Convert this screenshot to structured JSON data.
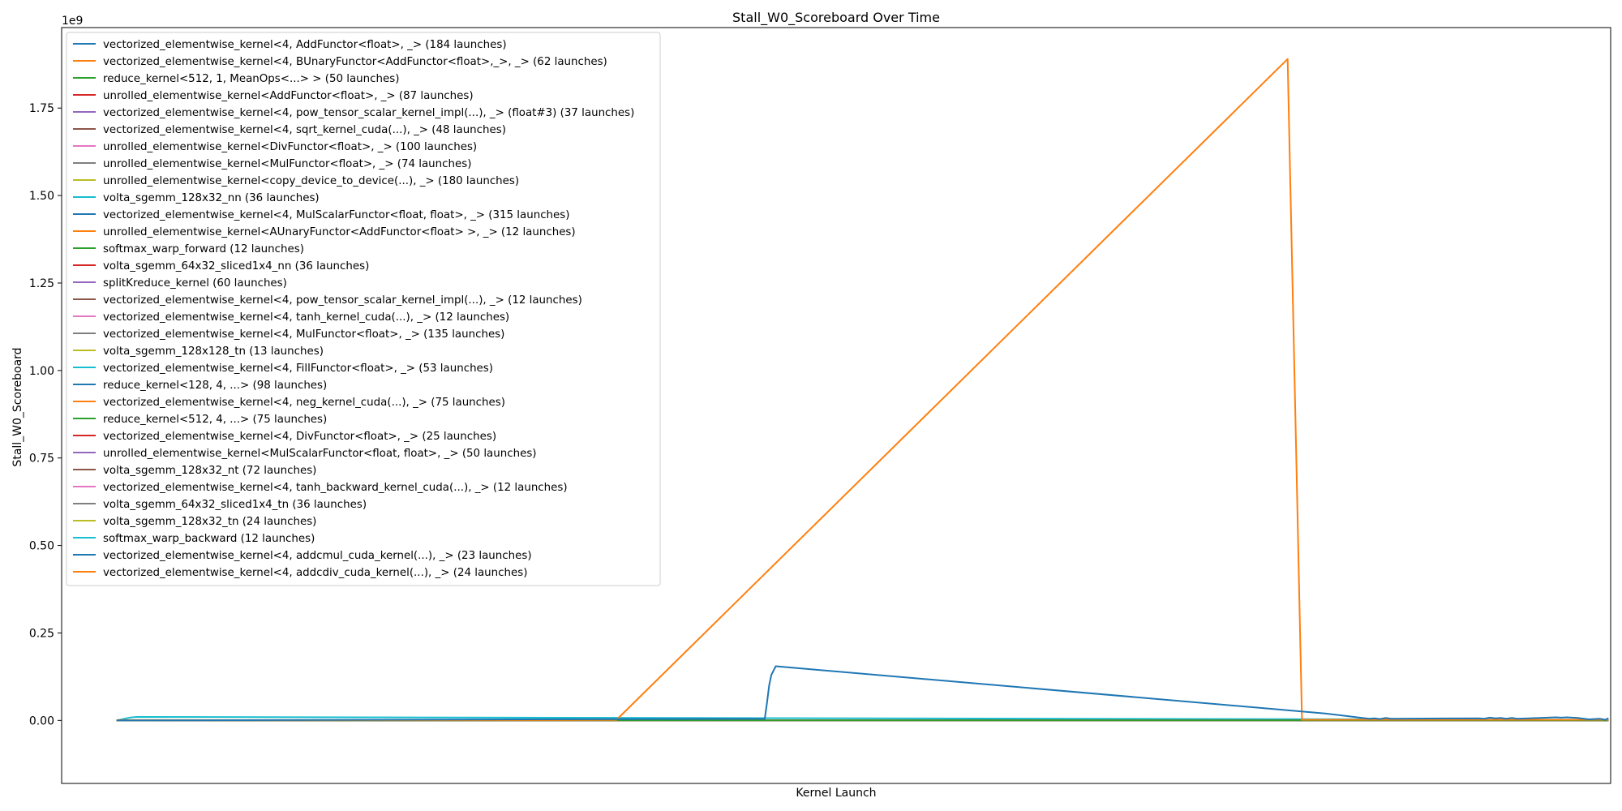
{
  "chart_data": {
    "type": "line",
    "title": "Stall_W0_Scoreboard Over Time",
    "xlabel": "Kernel Launch",
    "ylabel": "Stall_W0_Scoreboard",
    "y_offset_label": "1e9",
    "ylim": [
      -0.18,
      1.98
    ],
    "xlim": [
      -50,
      1360
    ],
    "yticks": [
      0.0,
      0.25,
      0.5,
      0.75,
      1.0,
      1.25,
      1.5,
      1.75
    ],
    "ytick_labels": [
      "0.00",
      "0.25",
      "0.50",
      "0.75",
      "1.00",
      "1.25",
      "1.50",
      "1.75"
    ],
    "xticks_shown": false,
    "grid": false,
    "legend_position": "upper left",
    "colors": [
      "#1f77b4",
      "#ff7f0e",
      "#2ca02c",
      "#d62728",
      "#9467bd",
      "#8c564b",
      "#e377c2",
      "#7f7f7f",
      "#bcbd22",
      "#17becf"
    ],
    "series": [
      {
        "name": "vectorized_elementwise_kernel<4, AddFunctor<float>, _> (184 launches)",
        "x": [
          0,
          5,
          10,
          15,
          19,
          20,
          590,
          592,
          594,
          596,
          600,
          1100,
          1140,
          1145,
          1150,
          1155,
          1160,
          1240,
          1245,
          1250,
          1255,
          1260,
          1265,
          1270,
          1275,
          1310,
          1315,
          1320,
          1325,
          1330,
          1340,
          1350,
          1355,
          1358
        ],
        "y": [
          0.0,
          0.0,
          0.0,
          0.0,
          0.0,
          0.0,
          0.005,
          0.05,
          0.1,
          0.13,
          0.155,
          0.02,
          0.005,
          0.006,
          0.004,
          0.007,
          0.005,
          0.006,
          0.005,
          0.008,
          0.006,
          0.007,
          0.005,
          0.007,
          0.005,
          0.009,
          0.008,
          0.009,
          0.008,
          0.007,
          0.003,
          0.005,
          0.002,
          0.006
        ]
      },
      {
        "name": "vectorized_elementwise_kernel<4, BUnaryFunctor<AddFunctor<float>,_>, _> (62 launches)",
        "x": [
          0,
          10,
          20,
          100,
          200,
          300,
          400,
          455,
          1066,
          1079,
          1100,
          1200,
          1300,
          1358
        ],
        "y": [
          0.001,
          0.001,
          0.001,
          0.001,
          0.001,
          0.001,
          0.001,
          0.0015,
          1.89,
          0.002,
          0.002,
          0.002,
          0.002,
          0.002
        ]
      },
      {
        "name": "reduce_kernel<512, 1, MeanOps<...> > (50 launches)",
        "x": [
          0,
          1358
        ],
        "y": [
          0.0,
          0.0
        ]
      },
      {
        "name": "unrolled_elementwise_kernel<AddFunctor<float>, _> (87 launches)",
        "x": [
          0,
          1358
        ],
        "y": [
          0.0,
          0.0
        ]
      },
      {
        "name": "vectorized_elementwise_kernel<4, pow_tensor_scalar_kernel_impl(...), _> (float#3) (37 launches)",
        "x": [
          0,
          1358
        ],
        "y": [
          0.0,
          0.0
        ]
      },
      {
        "name": "vectorized_elementwise_kernel<4, sqrt_kernel_cuda(...), _> (48 launches)",
        "x": [
          0,
          1358
        ],
        "y": [
          0.0,
          0.0
        ]
      },
      {
        "name": "unrolled_elementwise_kernel<DivFunctor<float>, _> (100 launches)",
        "x": [
          0,
          1358
        ],
        "y": [
          0.0,
          0.0
        ]
      },
      {
        "name": "unrolled_elementwise_kernel<MulFunctor<float>, _> (74 launches)",
        "x": [
          0,
          1358
        ],
        "y": [
          0.0,
          0.0
        ]
      },
      {
        "name": "unrolled_elementwise_kernel<copy_device_to_device(...), _> (180 launches)",
        "x": [
          0,
          1358
        ],
        "y": [
          0.0,
          0.0
        ]
      },
      {
        "name": "volta_sgemm_128x32_nn (36 launches)",
        "x": [
          0,
          12,
          18,
          1358
        ],
        "y": [
          0.0,
          0.008,
          0.01,
          0.002
        ]
      },
      {
        "name": "vectorized_elementwise_kernel<4, MulScalarFunctor<float, float>, _> (315 launches)",
        "x": [
          0,
          1358
        ],
        "y": [
          0.0,
          0.0
        ]
      },
      {
        "name": "unrolled_elementwise_kernel<AUnaryFunctor<AddFunctor<float> >, _> (12 launches)",
        "x": [
          0,
          1358
        ],
        "y": [
          0.0,
          0.0
        ]
      },
      {
        "name": "softmax_warp_forward (12 launches)",
        "x": [
          0,
          1358
        ],
        "y": [
          0.0,
          0.0
        ]
      },
      {
        "name": "volta_sgemm_64x32_sliced1x4_nn (36 launches)",
        "x": [
          0,
          1358
        ],
        "y": [
          0.0,
          0.0
        ]
      },
      {
        "name": "splitKreduce_kernel (60 launches)",
        "x": [
          0,
          1358
        ],
        "y": [
          0.0,
          0.0
        ]
      },
      {
        "name": "vectorized_elementwise_kernel<4, pow_tensor_scalar_kernel_impl(...), _> (12 launches)",
        "x": [
          0,
          1358
        ],
        "y": [
          0.0,
          0.0
        ]
      },
      {
        "name": "vectorized_elementwise_kernel<4, tanh_kernel_cuda(...), _> (12 launches)",
        "x": [
          0,
          1358
        ],
        "y": [
          0.0,
          0.0
        ]
      },
      {
        "name": "vectorized_elementwise_kernel<4, MulFunctor<float>, _> (135 launches)",
        "x": [
          0,
          1358
        ],
        "y": [
          0.0,
          0.0
        ]
      },
      {
        "name": "volta_sgemm_128x128_tn (13 launches)",
        "x": [
          0,
          1358
        ],
        "y": [
          0.0,
          0.0
        ]
      },
      {
        "name": "vectorized_elementwise_kernel<4, FillFunctor<float>, _> (53 launches)",
        "x": [
          0,
          1358
        ],
        "y": [
          0.0,
          0.0
        ]
      },
      {
        "name": "reduce_kernel<128, 4, ...> (98 launches)",
        "x": [
          0,
          1358
        ],
        "y": [
          0.0,
          0.0
        ]
      },
      {
        "name": "vectorized_elementwise_kernel<4, neg_kernel_cuda(...), _> (75 launches)",
        "x": [
          0,
          1358
        ],
        "y": [
          0.0,
          0.0
        ]
      },
      {
        "name": "reduce_kernel<512, 4, ...> (75 launches)",
        "x": [
          0,
          1358
        ],
        "y": [
          0.0,
          0.0
        ]
      },
      {
        "name": "vectorized_elementwise_kernel<4, DivFunctor<float>, _> (25 launches)",
        "x": [
          0,
          1358
        ],
        "y": [
          0.0,
          0.0
        ]
      },
      {
        "name": "unrolled_elementwise_kernel<MulScalarFunctor<float, float>, _> (50 launches)",
        "x": [
          0,
          1358
        ],
        "y": [
          0.0,
          0.0
        ]
      },
      {
        "name": "volta_sgemm_128x32_nt (72 launches)",
        "x": [
          0,
          1358
        ],
        "y": [
          0.0,
          0.0
        ]
      },
      {
        "name": "vectorized_elementwise_kernel<4, tanh_backward_kernel_cuda(...), _> (12 launches)",
        "x": [
          0,
          1358
        ],
        "y": [
          0.0,
          0.0
        ]
      },
      {
        "name": "volta_sgemm_64x32_sliced1x4_tn (36 launches)",
        "x": [
          0,
          1358
        ],
        "y": [
          0.0,
          0.0
        ]
      },
      {
        "name": "volta_sgemm_128x32_tn (24 launches)",
        "x": [
          0,
          1358
        ],
        "y": [
          0.0,
          0.0
        ]
      },
      {
        "name": "softmax_warp_backward (12 launches)",
        "x": [
          0,
          1358
        ],
        "y": [
          0.0,
          0.0
        ]
      },
      {
        "name": "vectorized_elementwise_kernel<4, addcmul_cuda_kernel(...), _> (23 launches)",
        "x": [
          0,
          1358
        ],
        "y": [
          0.0,
          0.0
        ]
      },
      {
        "name": "vectorized_elementwise_kernel<4, addcdiv_cuda_kernel(...), _> (24 launches)",
        "x": [
          0,
          1358
        ],
        "y": [
          0.0,
          0.0
        ]
      }
    ]
  }
}
